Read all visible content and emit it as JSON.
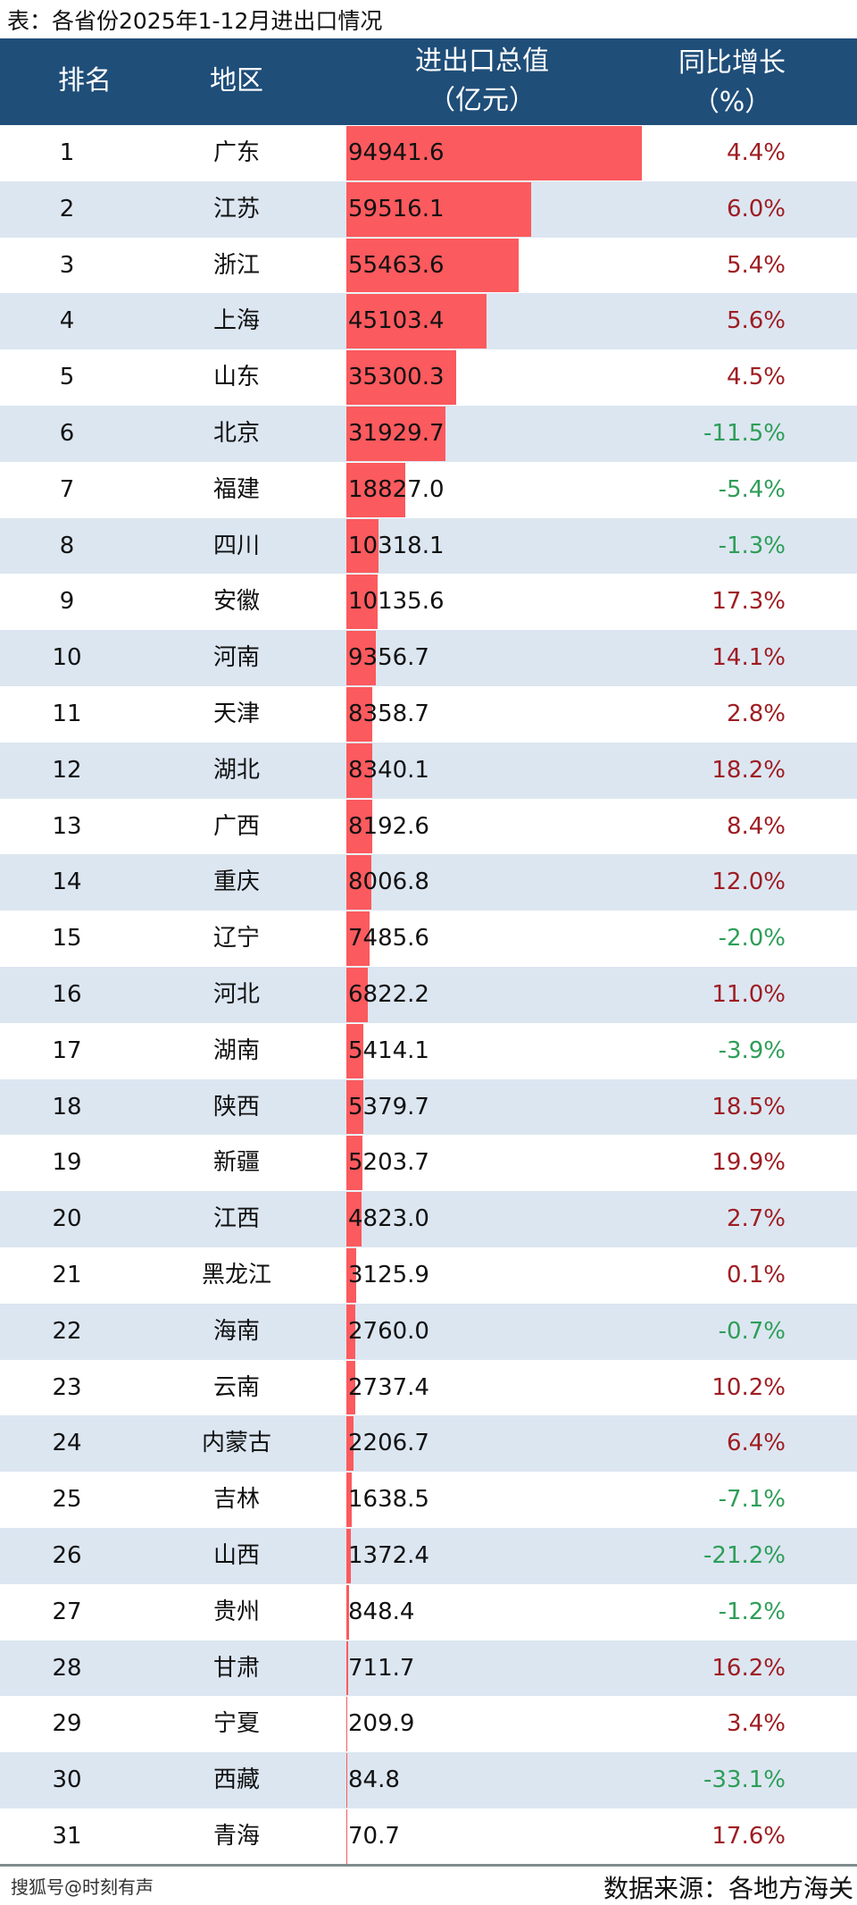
{
  "title": "表：各省份2025年1-12月进出口情况",
  "header": {
    "rank": "排名",
    "region": "地区",
    "value_line1": "进出口总值",
    "value_line2": "（亿元）",
    "growth_line1": "同比增长",
    "growth_line2": "（%）"
  },
  "chart_data": {
    "type": "table",
    "title": "表：各省份2025年1-12月进出口情况",
    "columns": [
      "排名",
      "地区",
      "进出口总值（亿元）",
      "同比增长（%）"
    ],
    "bar_color": "#fb5a5e",
    "positive_color": "#9e1d22",
    "negative_color": "#2e9e58",
    "rows": [
      {
        "rank": "1",
        "region": "广东",
        "value": 94941.6,
        "value_text": "94941.6",
        "growth": "4.4%"
      },
      {
        "rank": "2",
        "region": "江苏",
        "value": 59516.1,
        "value_text": "59516.1",
        "growth": "6.0%"
      },
      {
        "rank": "3",
        "region": "浙江",
        "value": 55463.6,
        "value_text": "55463.6",
        "growth": "5.4%"
      },
      {
        "rank": "4",
        "region": "上海",
        "value": 45103.4,
        "value_text": "45103.4",
        "growth": "5.6%"
      },
      {
        "rank": "5",
        "region": "山东",
        "value": 35300.3,
        "value_text": "35300.3",
        "growth": "4.5%"
      },
      {
        "rank": "6",
        "region": "北京",
        "value": 31929.7,
        "value_text": "31929.7",
        "growth": "-11.5%"
      },
      {
        "rank": "7",
        "region": "福建",
        "value": 18827.0,
        "value_text": "18827.0",
        "growth": "-5.4%"
      },
      {
        "rank": "8",
        "region": "四川",
        "value": 10318.1,
        "value_text": "10318.1",
        "growth": "-1.3%"
      },
      {
        "rank": "9",
        "region": "安徽",
        "value": 10135.6,
        "value_text": "10135.6",
        "growth": "17.3%"
      },
      {
        "rank": "10",
        "region": "河南",
        "value": 9356.7,
        "value_text": "9356.7",
        "growth": "14.1%"
      },
      {
        "rank": "11",
        "region": "天津",
        "value": 8358.7,
        "value_text": "8358.7",
        "growth": "2.8%"
      },
      {
        "rank": "12",
        "region": "湖北",
        "value": 8340.1,
        "value_text": "8340.1",
        "growth": "18.2%"
      },
      {
        "rank": "13",
        "region": "广西",
        "value": 8192.6,
        "value_text": "8192.6",
        "growth": "8.4%"
      },
      {
        "rank": "14",
        "region": "重庆",
        "value": 8006.8,
        "value_text": "8006.8",
        "growth": "12.0%"
      },
      {
        "rank": "15",
        "region": "辽宁",
        "value": 7485.6,
        "value_text": "7485.6",
        "growth": "-2.0%"
      },
      {
        "rank": "16",
        "region": "河北",
        "value": 6822.2,
        "value_text": "6822.2",
        "growth": "11.0%"
      },
      {
        "rank": "17",
        "region": "湖南",
        "value": 5414.1,
        "value_text": "5414.1",
        "growth": "-3.9%"
      },
      {
        "rank": "18",
        "region": "陕西",
        "value": 5379.7,
        "value_text": "5379.7",
        "growth": "18.5%"
      },
      {
        "rank": "19",
        "region": "新疆",
        "value": 5203.7,
        "value_text": "5203.7",
        "growth": "19.9%"
      },
      {
        "rank": "20",
        "region": "江西",
        "value": 4823.0,
        "value_text": "4823.0",
        "growth": "2.7%"
      },
      {
        "rank": "21",
        "region": "黑龙江",
        "value": 3125.9,
        "value_text": "3125.9",
        "growth": "0.1%"
      },
      {
        "rank": "22",
        "region": "海南",
        "value": 2760.0,
        "value_text": "2760.0",
        "growth": "-0.7%"
      },
      {
        "rank": "23",
        "region": "云南",
        "value": 2737.4,
        "value_text": "2737.4",
        "growth": "10.2%"
      },
      {
        "rank": "24",
        "region": "内蒙古",
        "value": 2206.7,
        "value_text": "2206.7",
        "growth": "6.4%"
      },
      {
        "rank": "25",
        "region": "吉林",
        "value": 1638.5,
        "value_text": "1638.5",
        "growth": "-7.1%"
      },
      {
        "rank": "26",
        "region": "山西",
        "value": 1372.4,
        "value_text": "1372.4",
        "growth": "-21.2%"
      },
      {
        "rank": "27",
        "region": "贵州",
        "value": 848.4,
        "value_text": "848.4",
        "growth": "-1.2%"
      },
      {
        "rank": "28",
        "region": "甘肃",
        "value": 711.7,
        "value_text": "711.7",
        "growth": "16.2%"
      },
      {
        "rank": "29",
        "region": "宁夏",
        "value": 209.9,
        "value_text": "209.9",
        "growth": "3.4%"
      },
      {
        "rank": "30",
        "region": "西藏",
        "value": 84.8,
        "value_text": "84.8",
        "growth": "-33.1%"
      },
      {
        "rank": "31",
        "region": "青海",
        "value": 70.7,
        "value_text": "70.7",
        "growth": "17.6%"
      }
    ]
  },
  "footer": {
    "watermark": "搜狐号@时刻有声",
    "source": "数据来源：各地方海关"
  }
}
